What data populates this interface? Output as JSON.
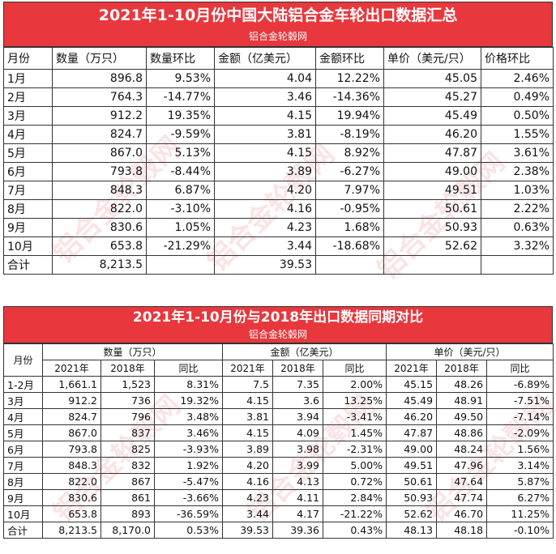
{
  "table1": {
    "title": "2021年1-10月份中国大陆铝合金车轮出口数据汇总",
    "subtitle": "铝合金轮毂网",
    "headers": [
      "月份",
      "数量（万只）",
      "数量环比",
      "金额（亿美元）",
      "金额环比",
      "单价（美元/只）",
      "价格环比"
    ],
    "rows": [
      [
        "1月",
        "896.8",
        "9.53%",
        "4.04",
        "12.22%",
        "45.05",
        "2.46%"
      ],
      [
        "2月",
        "764.3",
        "-14.77%",
        "3.46",
        "-14.36%",
        "45.27",
        "0.49%"
      ],
      [
        "3月",
        "912.2",
        "19.35%",
        "4.15",
        "19.94%",
        "45.49",
        "0.50%"
      ],
      [
        "4月",
        "824.7",
        "-9.59%",
        "3.81",
        "-8.19%",
        "46.20",
        "1.55%"
      ],
      [
        "5月",
        "867.0",
        "5.13%",
        "4.15",
        "8.92%",
        "47.87",
        "3.61%"
      ],
      [
        "6月",
        "793.8",
        "-8.44%",
        "3.89",
        "-6.27%",
        "49.00",
        "2.38%"
      ],
      [
        "7月",
        "848.3",
        "6.87%",
        "4.20",
        "7.97%",
        "49.51",
        "1.03%"
      ],
      [
        "8月",
        "822.0",
        "-3.10%",
        "4.16",
        "-0.95%",
        "50.61",
        "2.22%"
      ],
      [
        "9月",
        "830.6",
        "1.05%",
        "4.23",
        "1.68%",
        "50.93",
        "0.63%"
      ],
      [
        "10月",
        "653.8",
        "-21.29%",
        "3.44",
        "-18.68%",
        "52.62",
        "3.32%"
      ],
      [
        "合计",
        "8,213.5",
        "",
        "39.53",
        "",
        "",
        ""
      ]
    ]
  },
  "table2": {
    "title": "2021年1-10月份与2018年出口数据同期对比",
    "subtitle": "铝合金轮毂网",
    "month_header": "月份",
    "groups": [
      "数量（万只）",
      "金额（亿美元）",
      "单价（美元/只）"
    ],
    "subheaders": [
      "2021年",
      "2018年",
      "同比",
      "2021年",
      "2018年",
      "同比",
      "2021年",
      "2018年",
      "同比"
    ],
    "rows": [
      [
        "1-2月",
        "1,661.1",
        "1,523",
        "8.31%",
        "7.5",
        "7.35",
        "2.00%",
        "45.15",
        "48.26",
        "-6.89%"
      ],
      [
        "3月",
        "912.2",
        "736",
        "19.32%",
        "4.15",
        "3.6",
        "13.25%",
        "45.49",
        "48.91",
        "-7.51%"
      ],
      [
        "4月",
        "824.7",
        "796",
        "3.48%",
        "3.81",
        "3.94",
        "-3.41%",
        "46.20",
        "49.50",
        "-7.14%"
      ],
      [
        "5月",
        "867.0",
        "837",
        "3.46%",
        "4.15",
        "4.09",
        "1.45%",
        "47.87",
        "48.86",
        "-2.09%"
      ],
      [
        "6月",
        "793.8",
        "825",
        "-3.93%",
        "3.89",
        "3.98",
        "-2.31%",
        "49.00",
        "48.24",
        "1.56%"
      ],
      [
        "7月",
        "848.3",
        "832",
        "1.92%",
        "4.20",
        "3.99",
        "5.00%",
        "49.51",
        "47.96",
        "3.14%"
      ],
      [
        "8月",
        "822.0",
        "867",
        "-5.47%",
        "4.16",
        "4.13",
        "0.72%",
        "50.61",
        "47.64",
        "5.87%"
      ],
      [
        "9月",
        "830.6",
        "861",
        "-3.66%",
        "4.23",
        "4.11",
        "2.84%",
        "50.93",
        "47.74",
        "6.27%"
      ],
      [
        "10月",
        "653.8",
        "893",
        "-36.59%",
        "3.44",
        "4.17",
        "-21.22%",
        "52.62",
        "46.70",
        "11.25%"
      ],
      [
        "合计",
        "8,213.5",
        "8,170.0",
        "0.53%",
        "39.53",
        "39.36",
        "0.43%",
        "48.13",
        "48.18",
        "-0.10%"
      ]
    ]
  },
  "watermark": "铝合金轮毂网",
  "colors": {
    "banner": "#e8383d",
    "watermark": "rgba(220,60,70,0.14)"
  }
}
